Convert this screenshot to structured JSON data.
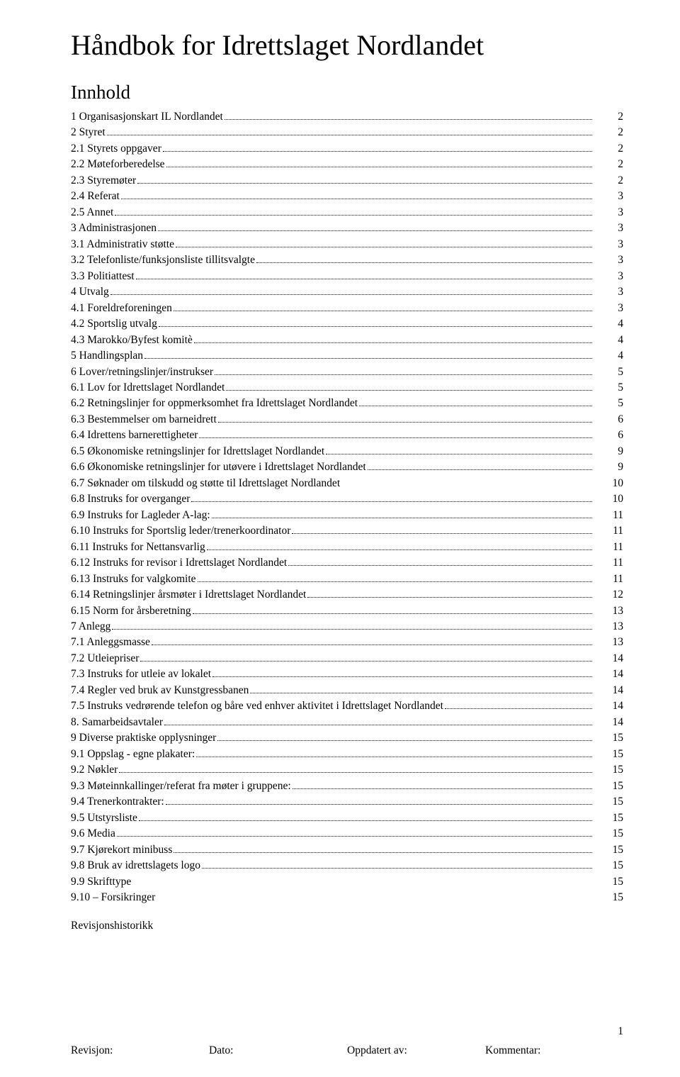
{
  "title": "Håndbok for Idrettslaget Nordlandet",
  "subtitle": "Innhold",
  "toc": [
    {
      "label": "1 Organisasjonskart IL Nordlandet",
      "page": "2",
      "dots": true
    },
    {
      "label": "2 Styret",
      "page": "2",
      "dots": true
    },
    {
      "label": "2.1 Styrets oppgaver",
      "page": "2",
      "dots": true
    },
    {
      "label": "2.2 Møteforberedelse",
      "page": "2",
      "dots": true
    },
    {
      "label": "2.3 Styremøter",
      "page": "2",
      "dots": true
    },
    {
      "label": "2.4 Referat",
      "page": "3",
      "dots": true
    },
    {
      "label": "2.5 Annet",
      "page": "3",
      "dots": true
    },
    {
      "label": "3 Administrasjonen",
      "page": "3",
      "dots": true
    },
    {
      "label": "3.1 Administrativ støtte",
      "page": "3",
      "dots": true
    },
    {
      "label": "3.2 Telefonliste/funksjonsliste tillitsvalgte",
      "page": "3",
      "dots": true
    },
    {
      "label": "3.3 Politiattest",
      "page": "3",
      "dots": true
    },
    {
      "label": "4 Utvalg",
      "page": "3",
      "dots": true
    },
    {
      "label": "4.1 Foreldreforeningen",
      "page": "3",
      "dots": true
    },
    {
      "label": "4.2 Sportslig utvalg",
      "page": "4",
      "dots": true
    },
    {
      "label": "4.3 Marokko/Byfest komitè",
      "page": "4",
      "dots": true
    },
    {
      "label": "5 Handlingsplan",
      "page": "4",
      "dots": true
    },
    {
      "label": "6 Lover/retningslinjer/instrukser",
      "page": "5",
      "dots": true
    },
    {
      "label": "6.1 Lov for Idrettslaget Nordlandet",
      "page": "5",
      "dots": true
    },
    {
      "label": "6.2 Retningslinjer for oppmerksomhet fra Idrettslaget Nordlandet",
      "page": "5",
      "dots": true
    },
    {
      "label": "6.3 Bestemmelser om barneidrett",
      "page": "6",
      "dots": true
    },
    {
      "label": "6.4 Idrettens barnerettigheter",
      "page": "6",
      "dots": true
    },
    {
      "label": "6.5 Økonomiske retningslinjer for Idrettslaget Nordlandet",
      "page": "9",
      "dots": true
    },
    {
      "label": "6.6 Økonomiske retningslinjer for utøvere i Idrettslaget Nordlandet",
      "page": "9",
      "dots": true
    },
    {
      "label": "6.7 Søknader om tilskudd og støtte til Idrettslaget Nordlandet",
      "page": "10",
      "dots": false
    },
    {
      "label": "6.8 Instruks for overganger",
      "page": "10",
      "dots": true
    },
    {
      "label": "6.9 Instruks for Lagleder A-lag:",
      "page": "11",
      "dots": true
    },
    {
      "label": "6.10 Instruks for Sportslig leder/trenerkoordinator",
      "page": "11",
      "dots": true
    },
    {
      "label": "6.11 Instruks for Nettansvarlig",
      "page": "11",
      "dots": true
    },
    {
      "label": "6.12 Instruks for revisor i Idrettslaget Nordlandet",
      "page": "11",
      "dots": true
    },
    {
      "label": "6.13 Instruks for valgkomite",
      "page": "11",
      "dots": true
    },
    {
      "label": "6.14 Retningslinjer årsmøter i Idrettslaget Nordlandet",
      "page": "12",
      "dots": true
    },
    {
      "label": "6.15 Norm for årsberetning",
      "page": "13",
      "dots": true
    },
    {
      "label": "7 Anlegg",
      "page": "13",
      "dots": true
    },
    {
      "label": "7.1 Anleggsmasse",
      "page": "13",
      "dots": true
    },
    {
      "label": "7.2 Utleiepriser",
      "page": "14",
      "dots": true
    },
    {
      "label": "7.3 Instruks for utleie av lokalet",
      "page": "14",
      "dots": true
    },
    {
      "label": "7.4 Regler ved bruk av Kunstgressbanen",
      "page": "14",
      "dots": true
    },
    {
      "label": "7.5 Instruks vedrørende telefon og båre ved enhver aktivitet i Idrettslaget Nordlandet",
      "page": "14",
      "dots": true
    },
    {
      "label": "8. Samarbeidsavtaler",
      "page": "14",
      "dots": true
    },
    {
      "label": "9  Diverse praktiske opplysninger",
      "page": "15",
      "dots": true
    },
    {
      "label": "9.1 Oppslag - egne plakater:",
      "page": "15",
      "dots": true
    },
    {
      "label": "9.2 Nøkler",
      "page": "15",
      "dots": true
    },
    {
      "label": "9.3 Møteinnkallinger/referat fra møter i gruppene:",
      "page": "15",
      "dots": true
    },
    {
      "label": "9.4 Trenerkontrakter:",
      "page": "15",
      "dots": true
    },
    {
      "label": "9.5 Utstyrsliste",
      "page": "15",
      "dots": true
    },
    {
      "label": "9.6 Media",
      "page": "15",
      "dots": true
    },
    {
      "label": "9.7 Kjørekort minibuss",
      "page": "15",
      "dots": true
    },
    {
      "label": "9.8 Bruk av idrettslagets logo",
      "page": "15",
      "dots": true
    },
    {
      "label": "9.9 Skrifttype",
      "page": "15",
      "dots": false
    },
    {
      "label": "9.10 – Forsikringer",
      "page": "15",
      "dots": false
    }
  ],
  "revision_history_label": "Revisjonshistorikk",
  "footer": {
    "revision": "Revisjon:",
    "date": "Dato:",
    "updated_by": "Oppdatert av:",
    "comment": "Kommentar:"
  },
  "page_number": "1"
}
